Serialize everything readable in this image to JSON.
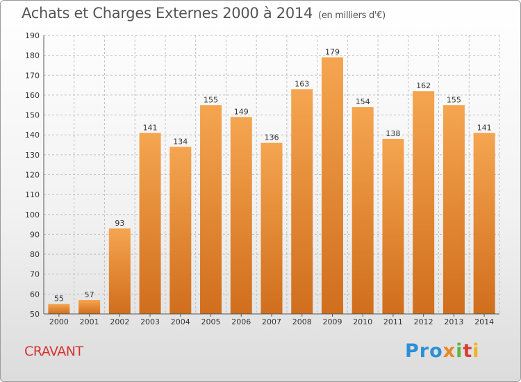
{
  "title": "Achats et Charges Externes 2000 à 2014",
  "subtitle": "(en milliers d'€)",
  "commune": "CRAVANT",
  "logo": {
    "p1": "Pro",
    "p2": "x",
    "p3": "i",
    "p4": "t",
    "p5": "i"
  },
  "colors": {
    "bar_top": "#f5a550",
    "bar_bottom": "#d06e1c",
    "grid": "#bfbfbf",
    "axis_text": "#333333",
    "commune": "#d6332e"
  },
  "chart_data": {
    "type": "bar",
    "title": "Achats et Charges Externes 2000 à 2014",
    "categories": [
      "2000",
      "2001",
      "2002",
      "2003",
      "2004",
      "2005",
      "2006",
      "2007",
      "2008",
      "2009",
      "2010",
      "2011",
      "2012",
      "2013",
      "2014"
    ],
    "values": [
      55,
      57,
      93,
      141,
      134,
      155,
      149,
      136,
      163,
      179,
      154,
      138,
      162,
      155,
      141
    ],
    "ylim": [
      50,
      190
    ],
    "yticks": [
      50,
      60,
      70,
      80,
      90,
      100,
      110,
      120,
      130,
      140,
      150,
      160,
      170,
      180,
      190
    ],
    "grid": true
  }
}
